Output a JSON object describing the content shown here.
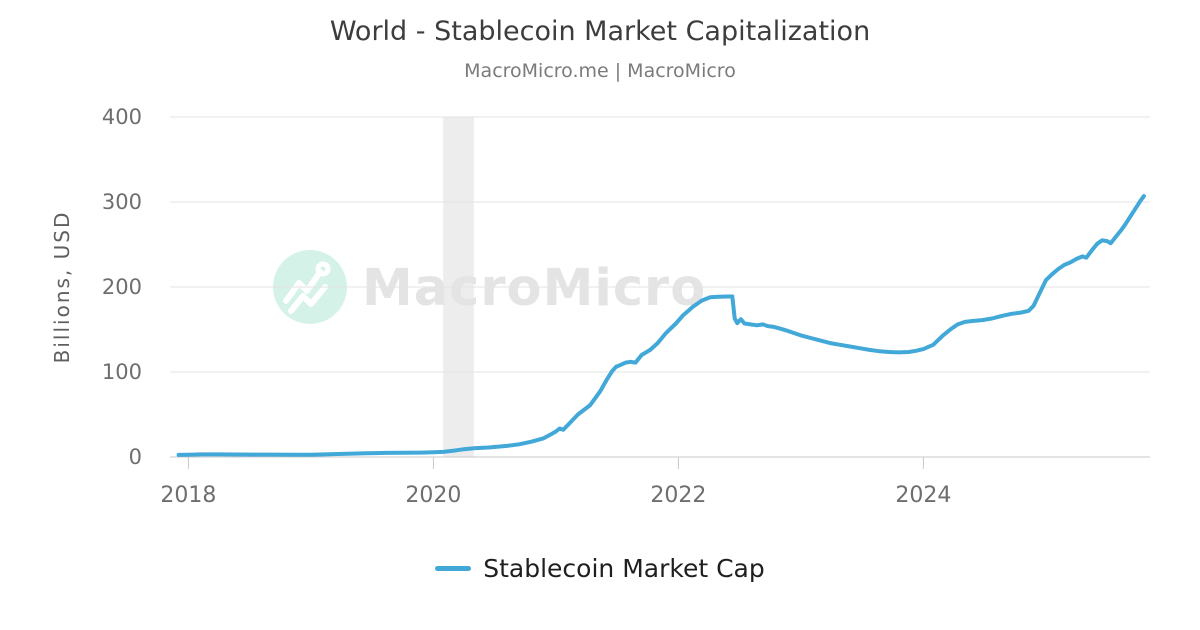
{
  "header": {
    "title": "World - Stablecoin Market Capitalization",
    "subtitle": "MacroMicro.me | MacroMicro"
  },
  "watermark": {
    "brand_text": "MacroMicro",
    "logo": "macromicro-line-chart-logo",
    "circle_color": "#d5f2e9",
    "text_color": "#e4e4e4"
  },
  "legend": {
    "items": [
      {
        "label": "Stablecoin Market Cap",
        "color": "#41a8d8"
      }
    ]
  },
  "chart_data": {
    "type": "line",
    "title": "World - Stablecoin Market Capitalization",
    "subtitle": "MacroMicro.me | MacroMicro",
    "xlabel": "",
    "ylabel": "Billions, USD",
    "unit": "USD billions",
    "x_ticks": [
      2018,
      2020,
      2022,
      2024
    ],
    "y_ticks": [
      400,
      300,
      200,
      100,
      0
    ],
    "xlim": [
      2017.85,
      2025.85
    ],
    "ylim": [
      0,
      400
    ],
    "grid": "horizontal",
    "legend_position": "bottom",
    "line_color": "#41a8d8",
    "recession_band": {
      "x_start": 2020.08,
      "x_end": 2020.33,
      "color": "#ededed"
    },
    "series": [
      {
        "name": "Stablecoin Market Cap",
        "points": [
          [
            2017.92,
            2.5
          ],
          [
            2018.0,
            2.7
          ],
          [
            2018.1,
            3.1
          ],
          [
            2018.25,
            3.0
          ],
          [
            2018.4,
            2.9
          ],
          [
            2018.55,
            2.8
          ],
          [
            2018.7,
            2.8
          ],
          [
            2018.85,
            2.7
          ],
          [
            2019.0,
            2.7
          ],
          [
            2019.15,
            3.2
          ],
          [
            2019.3,
            3.8
          ],
          [
            2019.45,
            4.4
          ],
          [
            2019.6,
            4.8
          ],
          [
            2019.75,
            5.0
          ],
          [
            2019.9,
            5.2
          ],
          [
            2020.0,
            5.5
          ],
          [
            2020.08,
            6.0
          ],
          [
            2020.17,
            7.5
          ],
          [
            2020.25,
            9.2
          ],
          [
            2020.33,
            10.3
          ],
          [
            2020.45,
            11.2
          ],
          [
            2020.6,
            13.0
          ],
          [
            2020.7,
            15.0
          ],
          [
            2020.8,
            18.0
          ],
          [
            2020.9,
            22.0
          ],
          [
            2020.97,
            27.5
          ],
          [
            2021.0,
            30.0
          ],
          [
            2021.03,
            33.5
          ],
          [
            2021.06,
            32.0
          ],
          [
            2021.1,
            38.0
          ],
          [
            2021.18,
            50.0
          ],
          [
            2021.28,
            61.0
          ],
          [
            2021.36,
            77.0
          ],
          [
            2021.42,
            92.0
          ],
          [
            2021.46,
            101.0
          ],
          [
            2021.49,
            106.0
          ],
          [
            2021.53,
            108.5
          ],
          [
            2021.57,
            111.0
          ],
          [
            2021.61,
            112.0
          ],
          [
            2021.65,
            111.0
          ],
          [
            2021.7,
            120.0
          ],
          [
            2021.77,
            126.0
          ],
          [
            2021.83,
            134.0
          ],
          [
            2021.9,
            146.0
          ],
          [
            2021.98,
            157.0
          ],
          [
            2022.04,
            167.0
          ],
          [
            2022.12,
            177.0
          ],
          [
            2022.19,
            184.0
          ],
          [
            2022.26,
            188.0
          ],
          [
            2022.33,
            188.5
          ],
          [
            2022.44,
            189.0
          ],
          [
            2022.46,
            163.0
          ],
          [
            2022.48,
            157.5
          ],
          [
            2022.51,
            162.0
          ],
          [
            2022.54,
            157.0
          ],
          [
            2022.59,
            156.0
          ],
          [
            2022.64,
            155.0
          ],
          [
            2022.69,
            156.0
          ],
          [
            2022.73,
            154.0
          ],
          [
            2022.78,
            153.0
          ],
          [
            2022.83,
            151.0
          ],
          [
            2022.88,
            149.0
          ],
          [
            2022.94,
            146.0
          ],
          [
            2023.0,
            143.0
          ],
          [
            2023.08,
            140.0
          ],
          [
            2023.16,
            137.0
          ],
          [
            2023.24,
            134.0
          ],
          [
            2023.32,
            132.0
          ],
          [
            2023.4,
            130.0
          ],
          [
            2023.48,
            128.0
          ],
          [
            2023.56,
            126.0
          ],
          [
            2023.64,
            124.5
          ],
          [
            2023.72,
            123.5
          ],
          [
            2023.8,
            123.0
          ],
          [
            2023.88,
            123.5
          ],
          [
            2023.94,
            125.0
          ],
          [
            2024.0,
            127.0
          ],
          [
            2024.08,
            132.0
          ],
          [
            2024.16,
            143.0
          ],
          [
            2024.22,
            150.0
          ],
          [
            2024.28,
            156.0
          ],
          [
            2024.34,
            159.0
          ],
          [
            2024.4,
            160.0
          ],
          [
            2024.48,
            161.0
          ],
          [
            2024.56,
            163.0
          ],
          [
            2024.64,
            166.0
          ],
          [
            2024.72,
            168.5
          ],
          [
            2024.8,
            170.0
          ],
          [
            2024.86,
            172.0
          ],
          [
            2024.9,
            178.0
          ],
          [
            2024.94,
            190.0
          ],
          [
            2024.97,
            199.0
          ],
          [
            2025.0,
            208.0
          ],
          [
            2025.05,
            215.0
          ],
          [
            2025.1,
            221.0
          ],
          [
            2025.15,
            226.0
          ],
          [
            2025.2,
            229.0
          ],
          [
            2025.25,
            233.0
          ],
          [
            2025.3,
            236.0
          ],
          [
            2025.33,
            234.5
          ],
          [
            2025.38,
            244.0
          ],
          [
            2025.42,
            251.0
          ],
          [
            2025.46,
            255.0
          ],
          [
            2025.5,
            254.0
          ],
          [
            2025.53,
            251.5
          ],
          [
            2025.57,
            259.0
          ],
          [
            2025.61,
            266.0
          ],
          [
            2025.65,
            274.0
          ],
          [
            2025.69,
            283.0
          ],
          [
            2025.73,
            292.0
          ],
          [
            2025.77,
            301.0
          ],
          [
            2025.8,
            307.0
          ]
        ]
      }
    ]
  },
  "colors": {
    "background": "#ffffff",
    "title_text": "#3d3d3d",
    "subtitle_text": "#7b7b7b",
    "axis_text": "#6e6e6e",
    "gridline": "#e3e3e3",
    "axis_line": "#c9c9c9"
  }
}
